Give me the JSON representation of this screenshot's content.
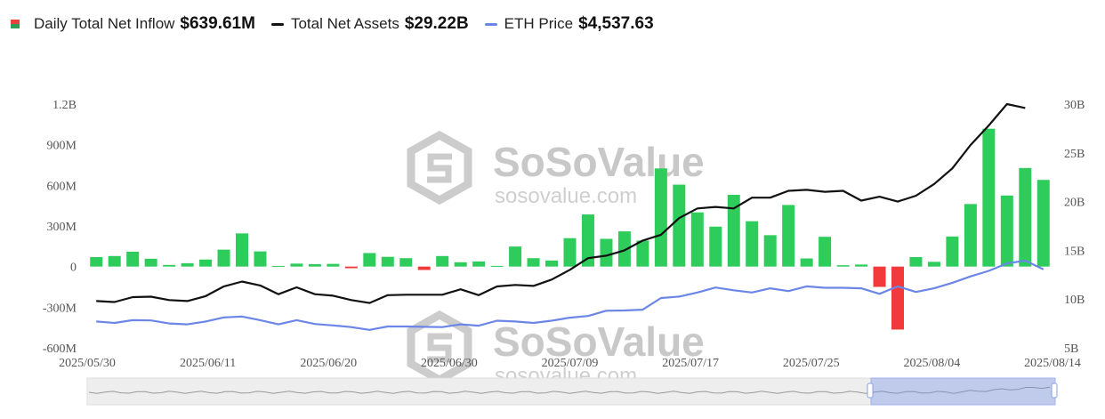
{
  "legend": {
    "inflow": {
      "name": "Daily Total Net Inflow",
      "value": "$639.61M",
      "color_up": "#e8413c",
      "color_down": "#2e9c57"
    },
    "assets": {
      "name": "Total Net Assets",
      "value": "$29.22B",
      "color": "#111111"
    },
    "price": {
      "name": "ETH Price",
      "value": "$4,537.63",
      "color": "#6b86e6"
    }
  },
  "watermark": {
    "brand": "SoSoValue",
    "site": "sosovalue.com"
  },
  "chart_data": {
    "type": "bar",
    "y_left": {
      "ticks": [
        "1.2B",
        "900M",
        "600M",
        "300M",
        "0",
        "-300M",
        "-600M"
      ],
      "ylim": [
        -600,
        1200
      ],
      "unit": "M"
    },
    "y_right": {
      "ticks": [
        "30B",
        "25B",
        "20B",
        "15B",
        "10B",
        "5B"
      ],
      "ylim": [
        5,
        30
      ],
      "unit": "B"
    },
    "x_ticks": [
      "2025/05/30",
      "2025/06/11",
      "2025/06/20",
      "2025/06/30",
      "2025/07/09",
      "2025/07/17",
      "2025/07/25",
      "2025/08/04",
      "2025/08/14"
    ],
    "x_tick_index": [
      0,
      8,
      16,
      24,
      32,
      40,
      48,
      56,
      64
    ],
    "colors": {
      "positive": "#2ecc5a",
      "negative": "#f23a3a",
      "assets": "#111111",
      "price": "#6b86e6"
    },
    "series": [
      {
        "name": "Daily Total Net Inflow",
        "type": "bar",
        "values": [
          70,
          78,
          110,
          58,
          12,
          25,
          52,
          125,
          245,
          112,
          5,
          22,
          18,
          20,
          -12,
          100,
          72,
          62,
          -25,
          78,
          32,
          38,
          5,
          148,
          62,
          45,
          210,
          385,
          205,
          260,
          192,
          725,
          605,
          400,
          295,
          530,
          335,
          232,
          455,
          60,
          220,
          10,
          15,
          -150,
          -465,
          70,
          35,
          222,
          462,
          1018,
          525,
          728,
          640
        ]
      },
      {
        "name": "Total Net Assets",
        "type": "line",
        "axis": "right",
        "values": [
          9.8,
          9.7,
          10.2,
          10.25,
          9.9,
          9.8,
          10.3,
          11.3,
          11.8,
          11.4,
          10.5,
          11.2,
          10.5,
          10.35,
          9.9,
          9.6,
          10.4,
          10.45,
          10.45,
          10.45,
          11.0,
          10.4,
          11.3,
          11.45,
          11.35,
          12.0,
          13.0,
          14.2,
          14.45,
          15.0,
          16.0,
          16.6,
          18.3,
          19.3,
          19.45,
          19.3,
          20.4,
          20.4,
          21.1,
          21.2,
          21.0,
          21.1,
          20.1,
          20.5,
          20.0,
          20.6,
          21.8,
          23.4,
          25.8,
          27.8,
          30.0,
          29.6
        ]
      },
      {
        "name": "ETH Price",
        "type": "line",
        "axis": "right",
        "values": [
          2650,
          2600,
          2700,
          2690,
          2580,
          2550,
          2650,
          2800,
          2830,
          2700,
          2550,
          2700,
          2560,
          2510,
          2450,
          2350,
          2470,
          2470,
          2460,
          2450,
          2550,
          2500,
          2680,
          2650,
          2600,
          2680,
          2790,
          2850,
          3040,
          3050,
          3080,
          3500,
          3550,
          3700,
          3880,
          3780,
          3700,
          3850,
          3750,
          3920,
          3870,
          3870,
          3850,
          3650,
          3920,
          3720,
          3850,
          4050,
          4280,
          4480,
          4750,
          4850,
          4537.63,
          4537.63
        ]
      }
    ]
  }
}
